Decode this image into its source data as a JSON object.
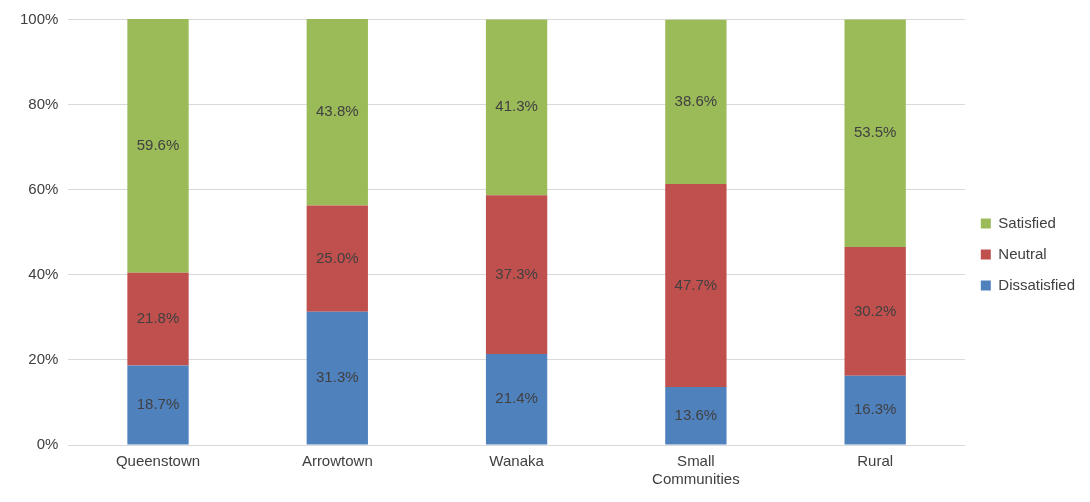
{
  "chart_data": {
    "type": "bar",
    "stacked": true,
    "categories": [
      "Queenstown",
      "Arrowtown",
      "Wanaka",
      "Small\nCommunities",
      "Rural"
    ],
    "series": [
      {
        "name": "Dissatisfied",
        "color": "#4f81bd",
        "values": [
          18.7,
          31.3,
          21.4,
          13.6,
          16.3
        ],
        "value_labels": [
          "18.7%",
          "31.3%",
          "21.4%",
          "13.6%",
          "16.3%"
        ]
      },
      {
        "name": "Neutral",
        "color": "#c0504d",
        "values": [
          21.8,
          25.0,
          37.3,
          47.7,
          30.2
        ],
        "value_labels": [
          "21.8%",
          "25.0%",
          "37.3%",
          "47.7%",
          "30.2%"
        ]
      },
      {
        "name": "Satisfied",
        "color": "#9bbb59",
        "values": [
          59.6,
          43.8,
          41.3,
          38.6,
          53.5
        ],
        "value_labels": [
          "59.6%",
          "43.8%",
          "41.3%",
          "38.6%",
          "53.5%"
        ]
      }
    ],
    "ylim": [
      0,
      100.1
    ],
    "yticks": [
      {
        "value": 0,
        "label": "0%"
      },
      {
        "value": 20,
        "label": "20%"
      },
      {
        "value": 40,
        "label": "40%"
      },
      {
        "value": 60,
        "label": "60%"
      },
      {
        "value": 80,
        "label": "80%"
      },
      {
        "value": 100,
        "label": "100%"
      }
    ],
    "grid": "y",
    "legend": "right"
  }
}
